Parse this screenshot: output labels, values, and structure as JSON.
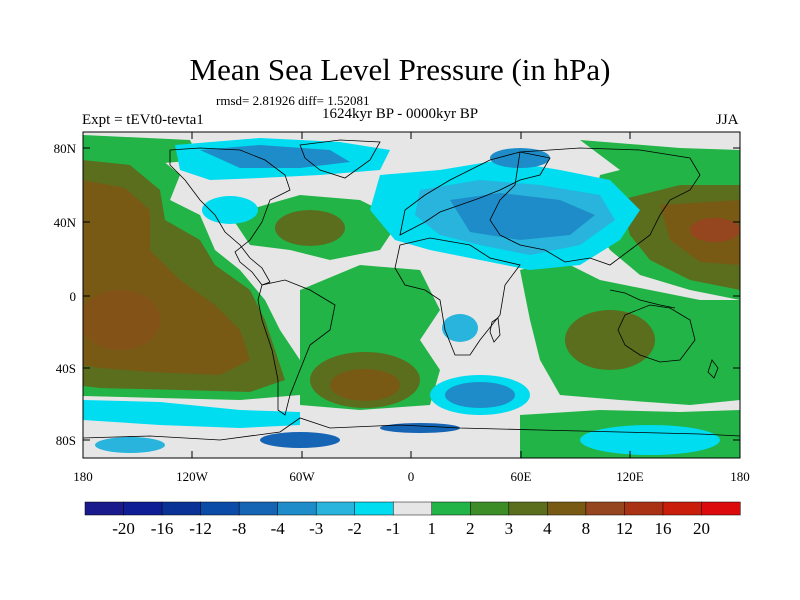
{
  "title": "Mean Sea Level Pressure (in hPa)",
  "stats_line": "rmsd= 2.81926 diff= 1.52081",
  "experiment": "Expt = tEVt0-tevta1",
  "period": "1624kyr BP - 0000kyr BP",
  "season": "JJA",
  "map": {
    "y_ticks": [
      "80N",
      "40N",
      "0",
      "40S",
      "80S"
    ],
    "x_ticks": [
      "180",
      "120W",
      "60W",
      "0",
      "60E",
      "120E",
      "180"
    ]
  },
  "colorbar": {
    "labels": [
      "-20",
      "-16",
      "-12",
      "-8",
      "-4",
      "-3",
      "-2",
      "-1",
      "1",
      "2",
      "3",
      "4",
      "8",
      "12",
      "16",
      "20"
    ],
    "colors": [
      "#1a1a8c",
      "#101e96",
      "#0a3296",
      "#0a4ba8",
      "#1664b4",
      "#1e8cc8",
      "#28b4dc",
      "#00dcf0",
      "#e6e6e6",
      "#22b446",
      "#3c8c28",
      "#5a6e1e",
      "#785a14",
      "#96461e",
      "#aa3214",
      "#c81e0a",
      "#dc0a0a"
    ]
  },
  "colors": {
    "near_zero": "#e6e6e6",
    "positive_2": "#22b446",
    "positive_3": "#3c8c28",
    "positive_4": "#5a6e1e",
    "positive_8": "#785a14",
    "negative_1": "#00dcf0",
    "negative_2": "#28b4dc",
    "negative_3": "#1e8cc8",
    "negative_4": "#1664b4"
  }
}
